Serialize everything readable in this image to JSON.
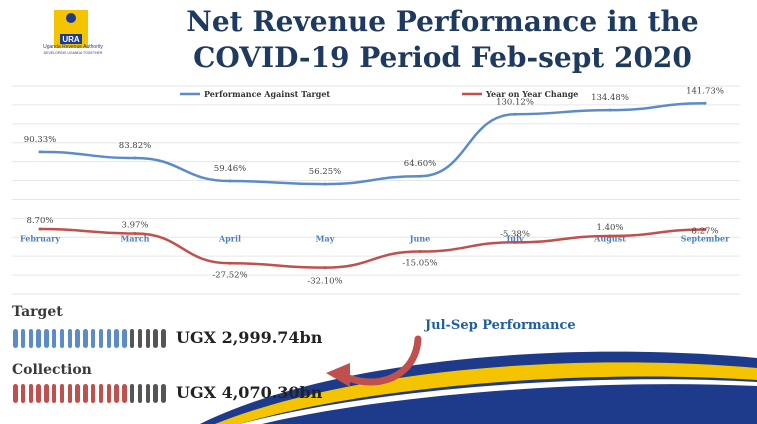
{
  "header": {
    "title_line1": "Net Revenue Performance in the",
    "title_line2": "COVID-19 Period Feb-sept 2020",
    "logo_text": "URA",
    "logo_org": "Uganda Revenue Authority",
    "logo_tagline": "DEVELOPING UGANDA TOGETHER"
  },
  "chart_data": {
    "type": "line",
    "categories": [
      "February",
      "March",
      "April",
      "May",
      "June",
      "July",
      "August",
      "September"
    ],
    "series": [
      {
        "name": "Performance Against Target",
        "color": "#5b8cc8",
        "values": [
          90.33,
          83.82,
          59.46,
          56.25,
          64.6,
          130.12,
          134.48,
          141.73
        ],
        "labels": [
          "90.33%",
          "83.82%",
          "59.46%",
          "56.25%",
          "64.60%",
          "130.12%",
          "134.48%",
          "141.73%"
        ]
      },
      {
        "name": "Year on Year Change",
        "color": "#c0504d",
        "values": [
          8.7,
          3.97,
          -27.52,
          -32.1,
          -15.05,
          -5.38,
          1.4,
          8.27
        ],
        "labels": [
          "8.70%",
          "3.97%",
          "-27.52%",
          "-32.10%",
          "-15.05%",
          "-5.38%",
          "1.40%",
          "8.27%"
        ]
      }
    ],
    "ylim": [
      -60,
      160
    ],
    "grid": true,
    "legend_position": "top"
  },
  "kpis": {
    "target_label": "Target",
    "target_value": "UGX 2,999.74bn",
    "target_filled_fraction": 0.75,
    "collection_label": "Collection",
    "collection_value": "UGX 4,070.30bn",
    "collection_filled_fraction": 0.75,
    "target_color": "#5b8cc8",
    "collection_color": "#c0504d",
    "empty_color": "#555555"
  },
  "annotation": {
    "text": "Jul-Sep Performance",
    "arrow_color": "#c0504d"
  },
  "colors": {
    "title": "#1f3a5f",
    "swoosh_blue": "#1e3a8a",
    "swoosh_yellow": "#f5c400"
  }
}
